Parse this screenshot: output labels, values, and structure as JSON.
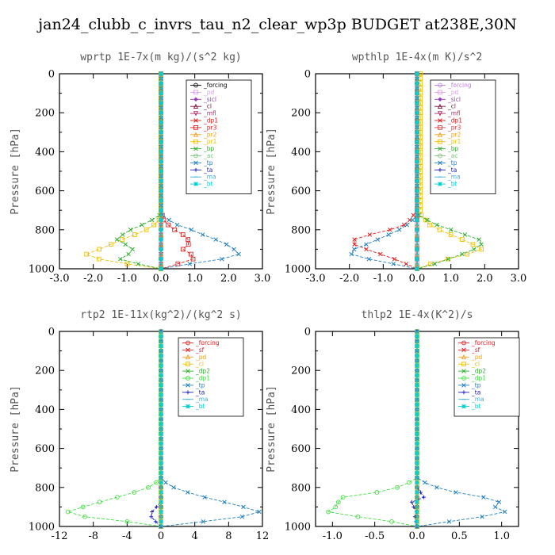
{
  "title": "jan24_clubb_c_invrs_tau_n2_clear_wp3p  BUDGET at238E,30N",
  "chart_data": [
    {
      "type": "line",
      "title": "wprtp   1E-7x(m kg)/(s^2 kg)",
      "ylabel": "Pressure [hPa]",
      "xlim": [
        -3.0,
        3.0
      ],
      "ylim": [
        1000,
        0
      ],
      "xticks": [
        "-3.0",
        "-2.0",
        "-1.0",
        "0.0",
        "1.0",
        "2.0",
        "3.0"
      ],
      "yticks": [
        "0",
        "200",
        "400",
        "600",
        "800",
        "1000"
      ],
      "series": [
        {
          "name": "_forcing",
          "color": "#000000",
          "marker": "o"
        },
        {
          "name": "_pd",
          "color": "#d9a3e6",
          "marker": "s"
        },
        {
          "name": "_sicl",
          "color": "#9b3fbf",
          "marker": "d"
        },
        {
          "name": "_cl",
          "color": "#7a0f3a",
          "marker": "^"
        },
        {
          "name": "_mfl",
          "color": "#b0306a",
          "marker": "v"
        },
        {
          "name": "_dp1",
          "color": "#e02020",
          "marker": "x"
        },
        {
          "name": "_pr3",
          "color": "#e02020",
          "marker": "s",
          "profile": [
            [
              0,
              0
            ],
            [
              0,
              700
            ],
            [
              0.1,
              760
            ],
            [
              0.4,
              800
            ],
            [
              0.7,
              830
            ],
            [
              0.85,
              860
            ],
            [
              0.8,
              880
            ],
            [
              0.65,
              900
            ],
            [
              0.85,
              920
            ],
            [
              1.0,
              940
            ],
            [
              0.9,
              960
            ],
            [
              0.5,
              975
            ],
            [
              0.2,
              990
            ],
            [
              0,
              1000
            ]
          ]
        },
        {
          "name": "_pr2",
          "color": "#f0a020",
          "marker": "^"
        },
        {
          "name": "_pr1",
          "color": "#f0c000",
          "marker": "s",
          "profile": [
            [
              0,
              0
            ],
            [
              0,
              740
            ],
            [
              -0.3,
              790
            ],
            [
              -0.7,
              820
            ],
            [
              -1.0,
              840
            ],
            [
              -1.3,
              860
            ],
            [
              -1.6,
              885
            ],
            [
              -1.9,
              905
            ],
            [
              -2.2,
              925
            ],
            [
              -2.0,
              945
            ],
            [
              -1.5,
              960
            ],
            [
              -1.0,
              975
            ],
            [
              -0.5,
              990
            ],
            [
              0,
              1000
            ]
          ]
        },
        {
          "name": "_bp",
          "color": "#30b030",
          "marker": "x",
          "profile": [
            [
              0,
              0
            ],
            [
              0,
              720
            ],
            [
              -0.4,
              765
            ],
            [
              -0.8,
              790
            ],
            [
              -1.1,
              820
            ],
            [
              -1.3,
              850
            ],
            [
              -1.0,
              880
            ],
            [
              -0.8,
              905
            ],
            [
              -1.0,
              930
            ],
            [
              -1.2,
              950
            ],
            [
              -0.8,
              970
            ],
            [
              -0.3,
              990
            ],
            [
              0,
              1000
            ]
          ]
        },
        {
          "name": "_ac",
          "color": "#80c080",
          "marker": "o"
        },
        {
          "name": "_tp",
          "color": "#2080c0",
          "marker": "x",
          "profile": [
            [
              0,
              0
            ],
            [
              0,
              720
            ],
            [
              0.4,
              770
            ],
            [
              0.9,
              800
            ],
            [
              1.3,
              830
            ],
            [
              1.7,
              855
            ],
            [
              2.0,
              880
            ],
            [
              2.2,
              905
            ],
            [
              2.3,
              925
            ],
            [
              1.8,
              950
            ],
            [
              1.0,
              970
            ],
            [
              0.4,
              990
            ],
            [
              0,
              1000
            ]
          ]
        },
        {
          "name": "_ta",
          "color": "#2020c0",
          "marker": "+"
        },
        {
          "name": "_ma",
          "color": "#40b0d0",
          "marker": "-"
        },
        {
          "name": "_bt",
          "color": "#00d0d0",
          "marker": "*"
        }
      ]
    },
    {
      "type": "line",
      "title": "wpthlp   1E-4x(m K)/s^2",
      "ylabel": "Pressure [hPa]",
      "xlim": [
        -3.0,
        3.0
      ],
      "ylim": [
        1000,
        0
      ],
      "xticks": [
        "-3.0",
        "-2.0",
        "-1.0",
        "0.0",
        "1.0",
        "2.0",
        "3.0"
      ],
      "yticks": [
        "0",
        "200",
        "400",
        "600",
        "800",
        "1000"
      ],
      "series": [
        {
          "name": "_forcing",
          "color": "#c080e0",
          "marker": "o"
        },
        {
          "name": "_pd",
          "color": "#d9a3e6",
          "marker": "s"
        },
        {
          "name": "_sicl",
          "color": "#9b3fbf",
          "marker": "d"
        },
        {
          "name": "_cl",
          "color": "#7a0f3a",
          "marker": "^"
        },
        {
          "name": "_mfl",
          "color": "#b0306a",
          "marker": "v"
        },
        {
          "name": "_dp1",
          "color": "#e02020",
          "marker": "x",
          "profile": [
            [
              0,
              0
            ],
            [
              0,
              700
            ],
            [
              -0.3,
              770
            ],
            [
              -0.8,
              800
            ],
            [
              -1.3,
              820
            ],
            [
              -1.7,
              840
            ],
            [
              -2.0,
              860
            ],
            [
              -1.8,
              880
            ],
            [
              -1.5,
              900
            ],
            [
              -1.0,
              930
            ],
            [
              -0.5,
              960
            ],
            [
              -0.2,
              985
            ],
            [
              0,
              1000
            ]
          ]
        },
        {
          "name": "_pr3",
          "color": "#e04040",
          "marker": "s"
        },
        {
          "name": "_pr2",
          "color": "#f0a020",
          "marker": "^"
        },
        {
          "name": "_pr1",
          "color": "#f0c000",
          "marker": "s",
          "profile": [
            [
              0.1,
              0
            ],
            [
              0.1,
              720
            ],
            [
              0.4,
              780
            ],
            [
              0.8,
              810
            ],
            [
              1.2,
              840
            ],
            [
              1.6,
              870
            ],
            [
              1.9,
              900
            ],
            [
              1.4,
              930
            ],
            [
              0.8,
              955
            ],
            [
              0.4,
              975
            ],
            [
              0.2,
              990
            ],
            [
              0,
              1000
            ]
          ]
        },
        {
          "name": "_bp",
          "color": "#30b030",
          "marker": "x",
          "profile": [
            [
              0,
              0
            ],
            [
              0,
              720
            ],
            [
              0.5,
              770
            ],
            [
              1.0,
              800
            ],
            [
              1.5,
              830
            ],
            [
              2.0,
              860
            ],
            [
              1.8,
              890
            ],
            [
              1.5,
              915
            ],
            [
              1.0,
              945
            ],
            [
              0.6,
              970
            ],
            [
              0.3,
              990
            ],
            [
              0,
              1000
            ]
          ]
        },
        {
          "name": "_ac",
          "color": "#80c080",
          "marker": "o"
        },
        {
          "name": "_tp",
          "color": "#2080c0",
          "marker": "x",
          "profile": [
            [
              0,
              0
            ],
            [
              0,
              730
            ],
            [
              -0.4,
              790
            ],
            [
              -0.9,
              830
            ],
            [
              -1.3,
              860
            ],
            [
              -1.7,
              890
            ],
            [
              -2.1,
              915
            ],
            [
              -1.7,
              940
            ],
            [
              -1.0,
              965
            ],
            [
              -0.4,
              985
            ],
            [
              0,
              1000
            ]
          ]
        },
        {
          "name": "_ta",
          "color": "#2020c0",
          "marker": "+"
        },
        {
          "name": "_ma",
          "color": "#40b0d0",
          "marker": "-"
        },
        {
          "name": "_bt",
          "color": "#00d0d0",
          "marker": "*"
        }
      ]
    },
    {
      "type": "line",
      "title": "rtp2   1E-11x(kg^2)/(kg^2 s)",
      "ylabel": "Pressure [hPa]",
      "xlim": [
        -12,
        12
      ],
      "ylim": [
        1000,
        0
      ],
      "xticks": [
        "-12",
        "-8",
        "-4",
        "0",
        "4",
        "8",
        "12"
      ],
      "yticks": [
        "0",
        "200",
        "400",
        "600",
        "800",
        "1000"
      ],
      "series": [
        {
          "name": "_forcing",
          "color": "#e02020",
          "marker": "o"
        },
        {
          "name": "_sf",
          "color": "#e02020",
          "marker": "x"
        },
        {
          "name": "_pd",
          "color": "#f0a020",
          "marker": "^"
        },
        {
          "name": "_cl",
          "color": "#f0c000",
          "marker": "s"
        },
        {
          "name": "_dp2",
          "color": "#30b030",
          "marker": "x"
        },
        {
          "name": "_dp1",
          "color": "#40e040",
          "marker": "o",
          "profile": [
            [
              0,
              0
            ],
            [
              0,
              760
            ],
            [
              -1.5,
              800
            ],
            [
              -3.5,
              830
            ],
            [
              -6,
              860
            ],
            [
              -8.5,
              890
            ],
            [
              -11,
              925
            ],
            [
              -9,
              950
            ],
            [
              -5,
              970
            ],
            [
              -2,
              985
            ],
            [
              0,
              1000
            ]
          ]
        },
        {
          "name": "_tp",
          "color": "#2080c0",
          "marker": "x",
          "profile": [
            [
              0,
              0
            ],
            [
              0,
              760
            ],
            [
              1.5,
              800
            ],
            [
              3.5,
              830
            ],
            [
              6,
              860
            ],
            [
              9,
              890
            ],
            [
              12,
              930
            ],
            [
              9,
              955
            ],
            [
              5,
              975
            ],
            [
              2,
              990
            ],
            [
              0,
              1000
            ]
          ]
        },
        {
          "name": "_ta",
          "color": "#2020c0",
          "marker": "+",
          "profile": [
            [
              0,
              0
            ],
            [
              0,
              880
            ],
            [
              -0.8,
              910
            ],
            [
              -1.3,
              940
            ],
            [
              -1.0,
              960
            ],
            [
              -0.5,
              980
            ],
            [
              0,
              1000
            ]
          ]
        },
        {
          "name": "_ma",
          "color": "#40b0d0",
          "marker": "-"
        },
        {
          "name": "_bt",
          "color": "#00d0d0",
          "marker": "*"
        }
      ]
    },
    {
      "type": "line",
      "title": "thlp2   1E-4x(K^2)/s",
      "ylabel": "Pressure [hPa]",
      "xlim": [
        -1.2,
        1.2
      ],
      "ylim": [
        1000,
        0
      ],
      "xticks": [
        "-1.0",
        "-0.5",
        "0.0",
        "0.5",
        "1.0"
      ],
      "xtickvals": [
        -1.0,
        -0.5,
        0.0,
        0.5,
        1.0
      ],
      "yticks": [
        "0",
        "200",
        "400",
        "600",
        "800",
        "1000"
      ],
      "series": [
        {
          "name": "_forcing",
          "color": "#e02020",
          "marker": "o"
        },
        {
          "name": "_sf",
          "color": "#e02020",
          "marker": "x"
        },
        {
          "name": "_pd",
          "color": "#f0a020",
          "marker": "^"
        },
        {
          "name": "_cl",
          "color": "#f0c000",
          "marker": "s"
        },
        {
          "name": "_dp2",
          "color": "#30b030",
          "marker": "x"
        },
        {
          "name": "_dp1",
          "color": "#40e040",
          "marker": "o",
          "profile": [
            [
              0,
              0
            ],
            [
              0,
              750
            ],
            [
              -0.15,
              790
            ],
            [
              -0.4,
              820
            ],
            [
              -0.7,
              840
            ],
            [
              -1.05,
              860
            ],
            [
              -0.85,
              885
            ],
            [
              -1.0,
              905
            ],
            [
              -1.05,
              925
            ],
            [
              -0.7,
              950
            ],
            [
              -0.3,
              975
            ],
            [
              0,
              1000
            ]
          ]
        },
        {
          "name": "_tp",
          "color": "#2080c0",
          "marker": "x",
          "profile": [
            [
              0,
              0
            ],
            [
              0,
              750
            ],
            [
              0.15,
              790
            ],
            [
              0.4,
              820
            ],
            [
              0.7,
              845
            ],
            [
              1.05,
              865
            ],
            [
              0.85,
              890
            ],
            [
              1.0,
              910
            ],
            [
              1.05,
              930
            ],
            [
              0.7,
              955
            ],
            [
              0.3,
              980
            ],
            [
              0,
              1000
            ]
          ]
        },
        {
          "name": "_ta",
          "color": "#2020c0",
          "marker": "+",
          "profile": [
            [
              0,
              0
            ],
            [
              0,
              800
            ],
            [
              0.05,
              830
            ],
            [
              0.08,
              850
            ],
            [
              -0.05,
              870
            ],
            [
              -0.1,
              890
            ],
            [
              0.02,
              910
            ],
            [
              -0.03,
              940
            ],
            [
              0,
              1000
            ]
          ]
        },
        {
          "name": "_ma",
          "color": "#40b0d0",
          "marker": "-"
        },
        {
          "name": "_bt",
          "color": "#00d0d0",
          "marker": "*"
        }
      ]
    }
  ]
}
